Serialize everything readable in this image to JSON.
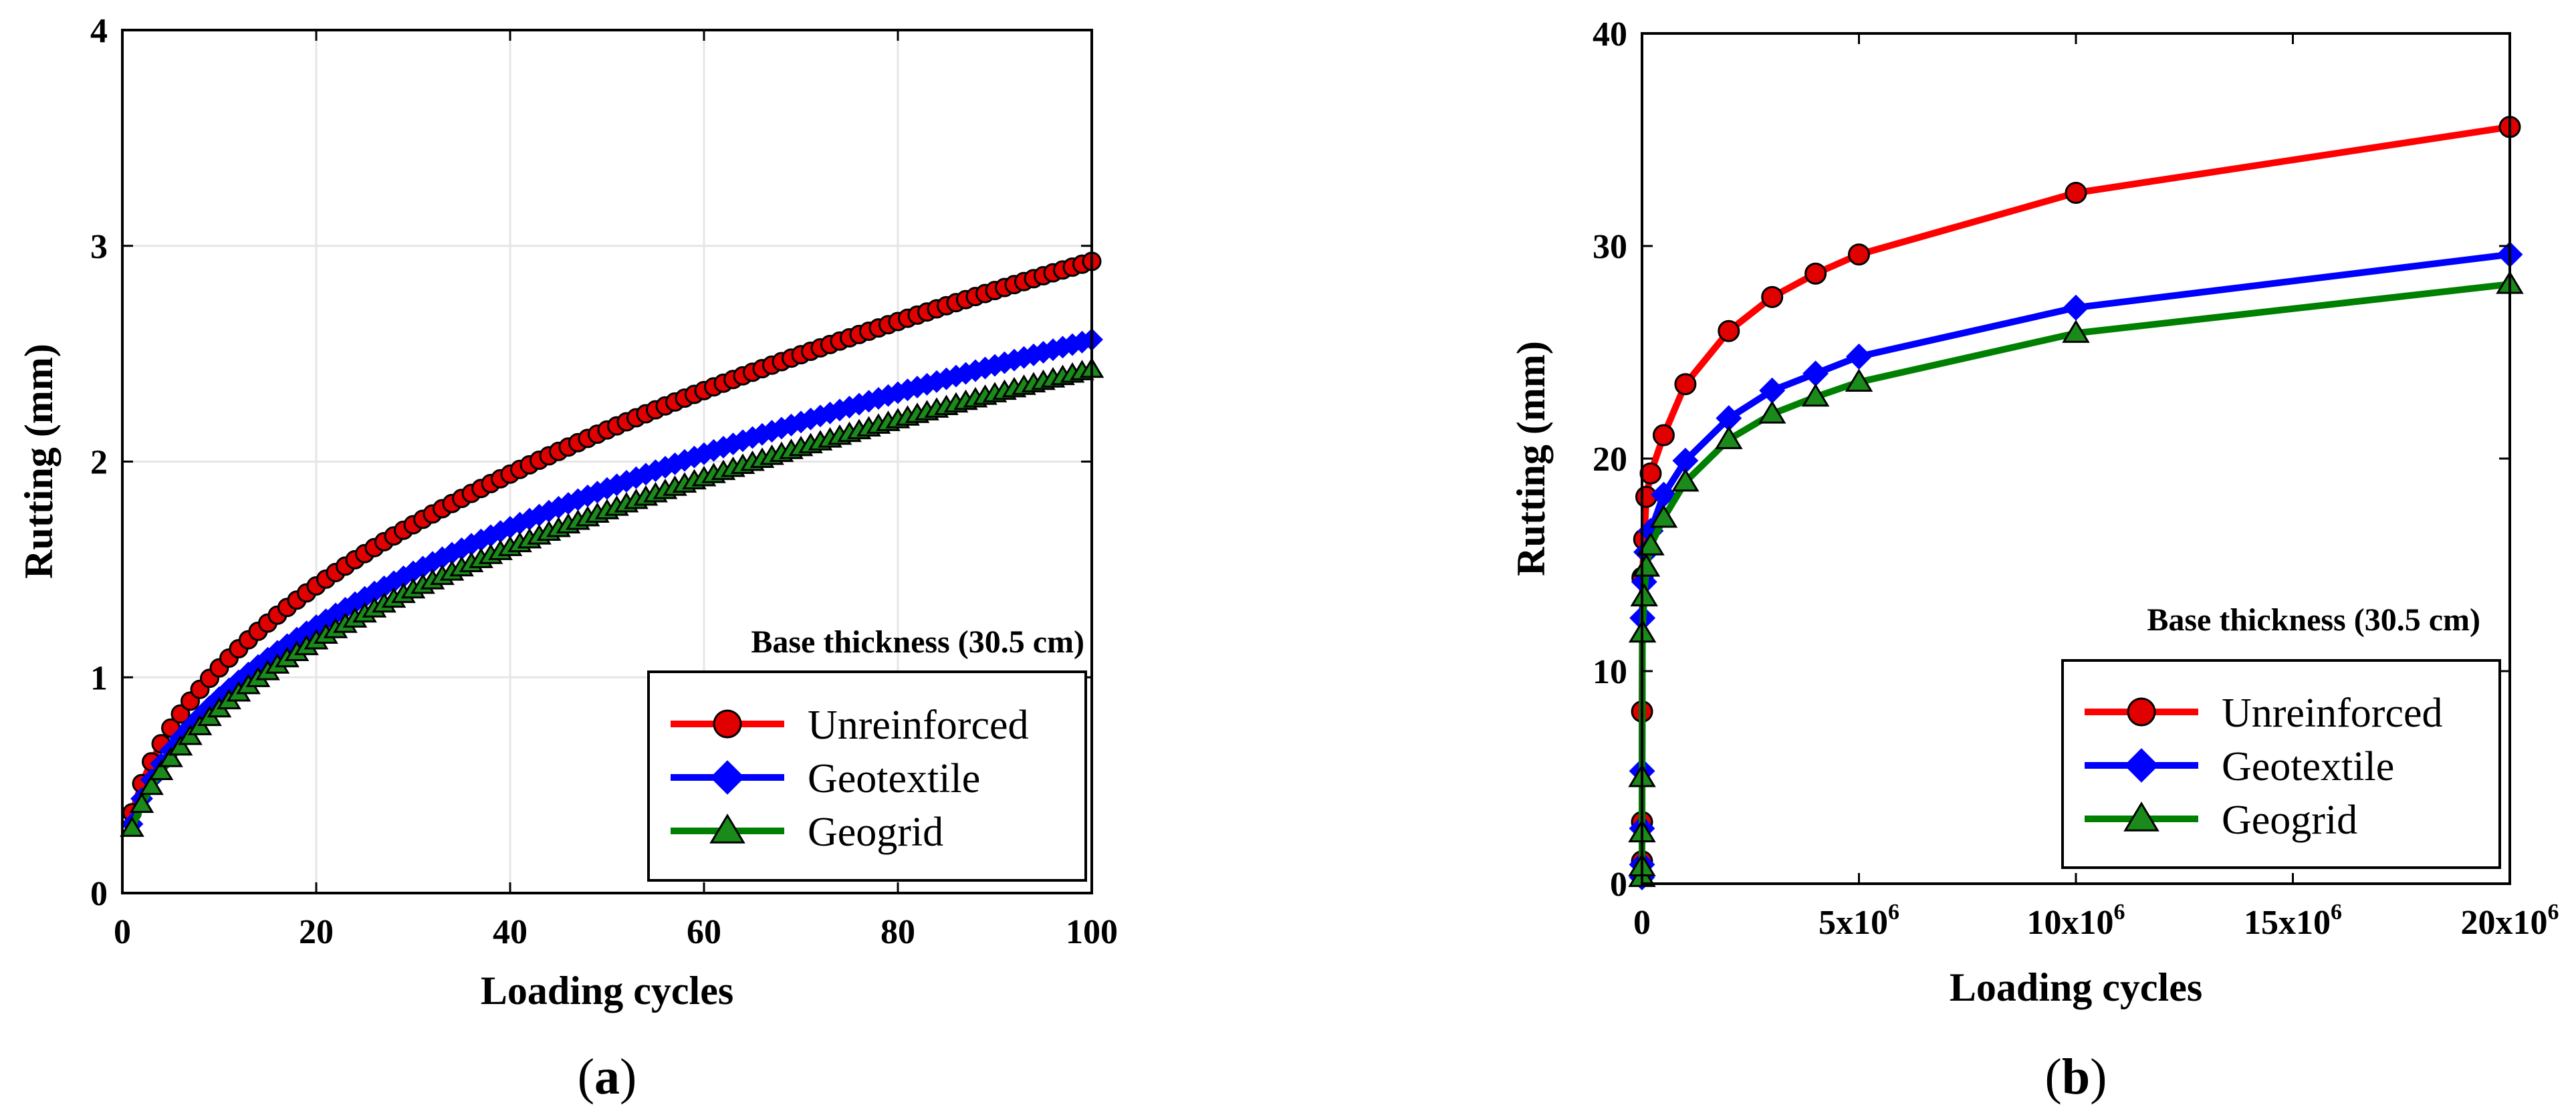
{
  "colors": {
    "Unreinforced": "#ff0000",
    "Geotextile": "#0000ff",
    "Geogrid": "#008000",
    "Unreinforced_marker": "#e00000",
    "Geotextile_marker": "#0000ff",
    "Geogrid_marker": "#1a8a1a"
  },
  "chart_data": [
    {
      "panel": "(a)",
      "panel_letter": "a",
      "type": "line",
      "title": "",
      "xlabel": "Loading cycles",
      "ylabel": "Rutting (mm)",
      "xlim": [
        0,
        100
      ],
      "ylim": [
        0,
        4
      ],
      "xticks": [
        0,
        20,
        40,
        60,
        80,
        100
      ],
      "xtick_labels": [
        "0",
        "20",
        "40",
        "60",
        "80",
        "100"
      ],
      "yticks": [
        0,
        1,
        2,
        3,
        4
      ],
      "ytick_labels": [
        "0",
        "1",
        "2",
        "3",
        "4"
      ],
      "grid": true,
      "legend": {
        "title": "Base thickness (30.5 cm)",
        "placement": "bottom-right",
        "entries": [
          "Unreinforced",
          "Geotextile",
          "Geogrid"
        ]
      },
      "series": [
        {
          "name": "Unreinforced",
          "marker": "circle",
          "model": "power",
          "a": 0.372,
          "b": 0.448,
          "x_start": 1,
          "x_end": 100,
          "x_step": 1
        },
        {
          "name": "Geotextile",
          "marker": "diamond",
          "model": "power",
          "a": 0.32,
          "b": 0.452,
          "x_start": 1,
          "x_end": 100,
          "x_step": 1
        },
        {
          "name": "Geogrid",
          "marker": "triangle",
          "model": "power",
          "a": 0.3,
          "b": 0.454,
          "x_start": 1,
          "x_end": 100,
          "x_step": 1
        }
      ]
    },
    {
      "panel": "(b)",
      "panel_letter": "b",
      "type": "line",
      "title": "",
      "xlabel": "Loading cycles",
      "ylabel": "Rutting (mm)",
      "xlim": [
        0,
        20000000
      ],
      "ylim": [
        0,
        40
      ],
      "xticks": [
        0,
        5000000,
        10000000,
        15000000,
        20000000
      ],
      "xtick_labels": [
        {
          "base": "0",
          "exp": ""
        },
        {
          "base": "5x10",
          "exp": "6"
        },
        {
          "base": "10x10",
          "exp": "6"
        },
        {
          "base": "15x10",
          "exp": "6"
        },
        {
          "base": "20x10",
          "exp": "6"
        }
      ],
      "yticks": [
        0,
        10,
        20,
        30,
        40
      ],
      "ytick_labels": [
        "0",
        "10",
        "20",
        "30",
        "40"
      ],
      "grid": false,
      "legend": {
        "title": "Base thickness (30.5 cm)",
        "placement": "center-right",
        "entries": [
          "Unreinforced",
          "Geotextile",
          "Geogrid"
        ]
      },
      "series": [
        {
          "name": "Unreinforced",
          "marker": "circle",
          "x": [
            1,
            10,
            100,
            1000,
            10000,
            50000,
            100000,
            200000,
            500000,
            1000000,
            2000000,
            3000000,
            4000000,
            5000000,
            10000000,
            20000000
          ],
          "y": [
            0.4,
            1.05,
            2.9,
            8.1,
            14.4,
            16.2,
            18.2,
            19.3,
            21.1,
            23.5,
            26.0,
            27.6,
            28.7,
            29.6,
            32.5,
            35.6
          ]
        },
        {
          "name": "Geotextile",
          "marker": "diamond",
          "x": [
            1,
            10,
            100,
            1000,
            10000,
            50000,
            100000,
            200000,
            500000,
            1000000,
            2000000,
            3000000,
            4000000,
            5000000,
            10000000,
            20000000
          ],
          "y": [
            0.3,
            0.9,
            2.6,
            5.3,
            12.5,
            14.2,
            15.6,
            16.6,
            18.3,
            19.9,
            21.9,
            23.2,
            24.0,
            24.8,
            27.1,
            29.6
          ]
        },
        {
          "name": "Geogrid",
          "marker": "triangle",
          "x": [
            1,
            10,
            100,
            1000,
            10000,
            50000,
            100000,
            200000,
            500000,
            1000000,
            2000000,
            3000000,
            4000000,
            5000000,
            10000000,
            20000000
          ],
          "y": [
            0.3,
            0.8,
            2.4,
            5.0,
            11.8,
            13.5,
            14.9,
            15.9,
            17.2,
            18.9,
            20.9,
            22.1,
            22.9,
            23.6,
            25.9,
            28.2
          ]
        }
      ]
    }
  ]
}
